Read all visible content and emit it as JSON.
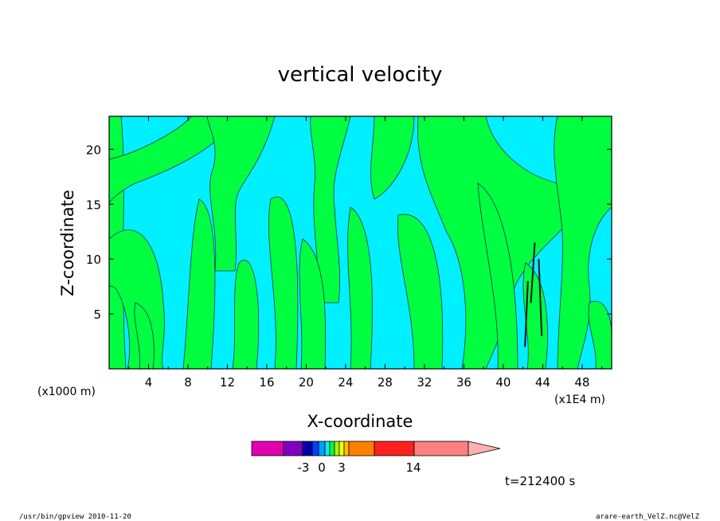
{
  "chart_data": {
    "type": "heatmap",
    "title": "vertical velocity",
    "xlabel": "X-coordinate",
    "ylabel": "Z-coordinate",
    "x_unit_left": "(x1000 m)",
    "x_unit_right": "(x1E4 m)",
    "xlim": [
      0,
      51
    ],
    "ylim": [
      0,
      23
    ],
    "xticks": [
      "4",
      "8",
      "12",
      "16",
      "20",
      "24",
      "28",
      "32",
      "36",
      "40",
      "44",
      "48"
    ],
    "yticks": [
      "5",
      "10",
      "15",
      "20"
    ],
    "x_tick_values": [
      4,
      8,
      12,
      16,
      20,
      24,
      28,
      32,
      36,
      40,
      44,
      48
    ],
    "y_tick_values": [
      5,
      10,
      15,
      20
    ],
    "colorbar": {
      "labels": [
        "-3",
        "0",
        "3",
        "14"
      ],
      "colors": [
        "#e000b0",
        "#8000c0",
        "#0000a0",
        "#0040ff",
        "#00a0ff",
        "#00f0ff",
        "#00ff40",
        "#a0ff00",
        "#ffff00",
        "#ffc000",
        "#ff8000",
        "#ff2020",
        "#ff8080",
        "#ffb0b0"
      ]
    },
    "fill_colors": {
      "negative": "#00f0ff",
      "positive": "#00ff40"
    },
    "time_label": "t=212400 s"
  },
  "footer": {
    "left": "/usr/bin/gpview   2010-11-20",
    "right": "arare-earth_VelZ.nc@VelZ"
  }
}
